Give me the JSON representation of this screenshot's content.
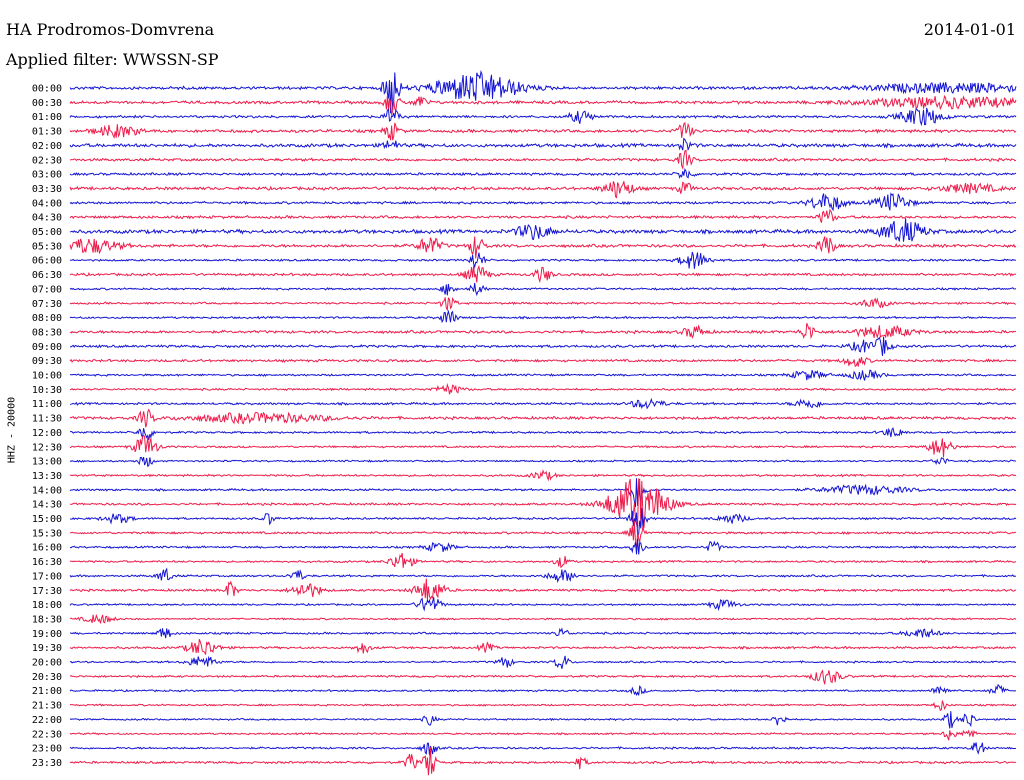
{
  "header": {
    "station": "HA Prodromos-Domvrena",
    "date": "2014-01-01",
    "filter": "Applied filter: WWSSN-SP",
    "channel": "HHZ - 20000"
  },
  "colors": {
    "even_trace": "#1414d4",
    "odd_trace": "#ee1c4a"
  },
  "chart_data": {
    "type": "line",
    "title": "HA Prodromos-Domvrena",
    "subtitle": "Applied filter: WWSSN-SP",
    "ylabel": "HHZ - 20000",
    "xlabel": "",
    "traces": [
      {
        "label": "00:00",
        "base": 1.2,
        "events": [
          [
            0.43,
            5,
            0.03
          ],
          [
            0.34,
            9,
            0.005
          ],
          [
            0.93,
            1.5,
            0.06
          ]
        ]
      },
      {
        "label": "00:30",
        "base": 1.2,
        "events": [
          [
            0.34,
            4,
            0.005
          ],
          [
            0.37,
            2,
            0.005
          ],
          [
            0.93,
            1.8,
            0.06
          ]
        ]
      },
      {
        "label": "01:00",
        "base": 1.0,
        "events": [
          [
            0.34,
            3,
            0.005
          ],
          [
            0.54,
            2,
            0.008
          ],
          [
            0.9,
            3,
            0.015
          ]
        ]
      },
      {
        "label": "01:30",
        "base": 1.2,
        "events": [
          [
            0.05,
            2,
            0.015
          ],
          [
            0.34,
            3,
            0.005
          ],
          [
            0.65,
            3,
            0.005
          ]
        ]
      },
      {
        "label": "02:00",
        "base": 1.4,
        "events": [
          [
            0.34,
            2,
            0.005
          ],
          [
            0.65,
            2,
            0.005
          ]
        ]
      },
      {
        "label": "02:30",
        "base": 1.1,
        "events": [
          [
            0.65,
            3,
            0.005
          ]
        ]
      },
      {
        "label": "03:00",
        "base": 1.0,
        "events": [
          [
            0.65,
            2,
            0.005
          ]
        ]
      },
      {
        "label": "03:30",
        "base": 1.2,
        "events": [
          [
            0.58,
            3,
            0.01
          ],
          [
            0.65,
            2,
            0.005
          ],
          [
            0.95,
            1.5,
            0.02
          ]
        ]
      },
      {
        "label": "04:00",
        "base": 1.0,
        "events": [
          [
            0.8,
            3,
            0.012
          ],
          [
            0.87,
            3,
            0.012
          ]
        ]
      },
      {
        "label": "04:30",
        "base": 1.1,
        "events": [
          [
            0.8,
            3,
            0.005
          ]
        ]
      },
      {
        "label": "05:00",
        "base": 1.5,
        "events": [
          [
            0.49,
            2.5,
            0.012
          ],
          [
            0.88,
            4,
            0.015
          ]
        ]
      },
      {
        "label": "05:30",
        "base": 1.2,
        "events": [
          [
            0.02,
            2.5,
            0.02
          ],
          [
            0.38,
            3,
            0.008
          ],
          [
            0.43,
            4,
            0.005
          ],
          [
            0.8,
            4,
            0.005
          ]
        ]
      },
      {
        "label": "06:00",
        "base": 0.8,
        "events": [
          [
            0.43,
            3,
            0.005
          ],
          [
            0.66,
            3,
            0.01
          ]
        ]
      },
      {
        "label": "06:30",
        "base": 1.0,
        "events": [
          [
            0.43,
            3,
            0.008
          ],
          [
            0.5,
            2.5,
            0.006
          ]
        ]
      },
      {
        "label": "07:00",
        "base": 0.8,
        "events": [
          [
            0.4,
            2,
            0.005
          ],
          [
            0.43,
            2,
            0.005
          ]
        ]
      },
      {
        "label": "07:30",
        "base": 0.8,
        "events": [
          [
            0.4,
            2.5,
            0.005
          ],
          [
            0.85,
            1.5,
            0.01
          ]
        ]
      },
      {
        "label": "08:00",
        "base": 0.8,
        "events": [
          [
            0.4,
            3,
            0.005
          ]
        ]
      },
      {
        "label": "08:30",
        "base": 1.1,
        "events": [
          [
            0.66,
            2,
            0.008
          ],
          [
            0.78,
            3,
            0.005
          ],
          [
            0.86,
            2,
            0.02
          ]
        ]
      },
      {
        "label": "09:00",
        "base": 1.0,
        "events": [
          [
            0.84,
            2,
            0.01
          ],
          [
            0.86,
            3,
            0.005
          ]
        ]
      },
      {
        "label": "09:30",
        "base": 1.0,
        "events": [
          [
            0.83,
            2,
            0.008
          ]
        ]
      },
      {
        "label": "10:00",
        "base": 0.8,
        "events": [
          [
            0.78,
            1.5,
            0.012
          ],
          [
            0.84,
            1.5,
            0.012
          ]
        ]
      },
      {
        "label": "10:30",
        "base": 0.8,
        "events": [
          [
            0.4,
            1.5,
            0.01
          ]
        ]
      },
      {
        "label": "11:00",
        "base": 0.9,
        "events": [
          [
            0.61,
            1.5,
            0.012
          ],
          [
            0.78,
            1.5,
            0.01
          ]
        ]
      },
      {
        "label": "11:30",
        "base": 1.1,
        "events": [
          [
            0.08,
            3,
            0.005
          ],
          [
            0.2,
            1.5,
            0.05
          ]
        ]
      },
      {
        "label": "12:00",
        "base": 0.8,
        "events": [
          [
            0.08,
            3,
            0.005
          ],
          [
            0.87,
            1.5,
            0.008
          ]
        ]
      },
      {
        "label": "12:30",
        "base": 0.8,
        "events": [
          [
            0.08,
            4,
            0.008
          ],
          [
            0.92,
            3.5,
            0.008
          ]
        ]
      },
      {
        "label": "13:00",
        "base": 0.7,
        "events": [
          [
            0.08,
            2,
            0.005
          ],
          [
            0.92,
            1.5,
            0.005
          ]
        ]
      },
      {
        "label": "13:30",
        "base": 0.8,
        "events": [
          [
            0.5,
            1.5,
            0.008
          ]
        ]
      },
      {
        "label": "14:00",
        "base": 0.8,
        "events": [
          [
            0.6,
            7,
            0.005
          ],
          [
            0.84,
            1.5,
            0.03
          ]
        ]
      },
      {
        "label": "14:30",
        "base": 0.9,
        "events": [
          [
            0.6,
            9,
            0.02
          ]
        ]
      },
      {
        "label": "15:00",
        "base": 0.8,
        "events": [
          [
            0.05,
            1.5,
            0.01
          ],
          [
            0.6,
            6,
            0.005
          ],
          [
            0.7,
            1.5,
            0.01
          ],
          [
            0.21,
            2,
            0.004
          ]
        ]
      },
      {
        "label": "15:30",
        "base": 0.9,
        "events": [
          [
            0.6,
            5,
            0.005
          ]
        ]
      },
      {
        "label": "16:00",
        "base": 0.8,
        "events": [
          [
            0.39,
            1.5,
            0.01
          ],
          [
            0.6,
            3,
            0.005
          ],
          [
            0.68,
            2,
            0.005
          ]
        ]
      },
      {
        "label": "16:30",
        "base": 0.8,
        "events": [
          [
            0.35,
            3,
            0.008
          ],
          [
            0.52,
            2,
            0.005
          ]
        ]
      },
      {
        "label": "17:00",
        "base": 0.8,
        "events": [
          [
            0.1,
            2.5,
            0.005
          ],
          [
            0.24,
            2,
            0.005
          ],
          [
            0.52,
            2,
            0.01
          ]
        ]
      },
      {
        "label": "17:30",
        "base": 0.9,
        "events": [
          [
            0.25,
            2.5,
            0.01
          ],
          [
            0.38,
            4,
            0.01
          ],
          [
            0.17,
            3,
            0.004
          ]
        ]
      },
      {
        "label": "18:00",
        "base": 0.7,
        "events": [
          [
            0.38,
            3,
            0.008
          ],
          [
            0.69,
            1.5,
            0.01
          ]
        ]
      },
      {
        "label": "18:30",
        "base": 0.7,
        "events": [
          [
            0.03,
            1.5,
            0.01
          ]
        ]
      },
      {
        "label": "19:00",
        "base": 0.8,
        "events": [
          [
            0.1,
            2,
            0.005
          ],
          [
            0.52,
            1.5,
            0.005
          ],
          [
            0.9,
            1.5,
            0.012
          ]
        ]
      },
      {
        "label": "19:30",
        "base": 0.9,
        "events": [
          [
            0.14,
            3,
            0.01
          ],
          [
            0.31,
            2,
            0.005
          ],
          [
            0.44,
            1.5,
            0.005
          ]
        ]
      },
      {
        "label": "20:00",
        "base": 0.7,
        "events": [
          [
            0.14,
            2,
            0.01
          ],
          [
            0.46,
            2,
            0.005
          ],
          [
            0.52,
            2.5,
            0.005
          ]
        ]
      },
      {
        "label": "20:30",
        "base": 0.8,
        "events": [
          [
            0.8,
            2.5,
            0.01
          ]
        ]
      },
      {
        "label": "21:00",
        "base": 0.7,
        "events": [
          [
            0.6,
            1.5,
            0.005
          ],
          [
            0.92,
            2,
            0.005
          ],
          [
            0.98,
            2,
            0.005
          ]
        ]
      },
      {
        "label": "21:30",
        "base": 0.7,
        "events": [
          [
            0.92,
            2,
            0.004
          ]
        ]
      },
      {
        "label": "22:00",
        "base": 0.7,
        "events": [
          [
            0.38,
            2,
            0.004
          ],
          [
            0.75,
            2.5,
            0.004
          ],
          [
            0.93,
            3,
            0.004
          ],
          [
            0.95,
            3,
            0.004
          ]
        ]
      },
      {
        "label": "22:30",
        "base": 0.7,
        "events": [
          [
            0.93,
            2.5,
            0.004
          ],
          [
            0.95,
            2,
            0.004
          ]
        ]
      },
      {
        "label": "23:00",
        "base": 0.8,
        "events": [
          [
            0.38,
            2.5,
            0.005
          ],
          [
            0.96,
            3,
            0.004
          ]
        ]
      },
      {
        "label": "23:30",
        "base": 0.9,
        "events": [
          [
            0.36,
            3,
            0.004
          ],
          [
            0.38,
            6,
            0.004
          ],
          [
            0.54,
            2,
            0.004
          ]
        ]
      }
    ]
  }
}
